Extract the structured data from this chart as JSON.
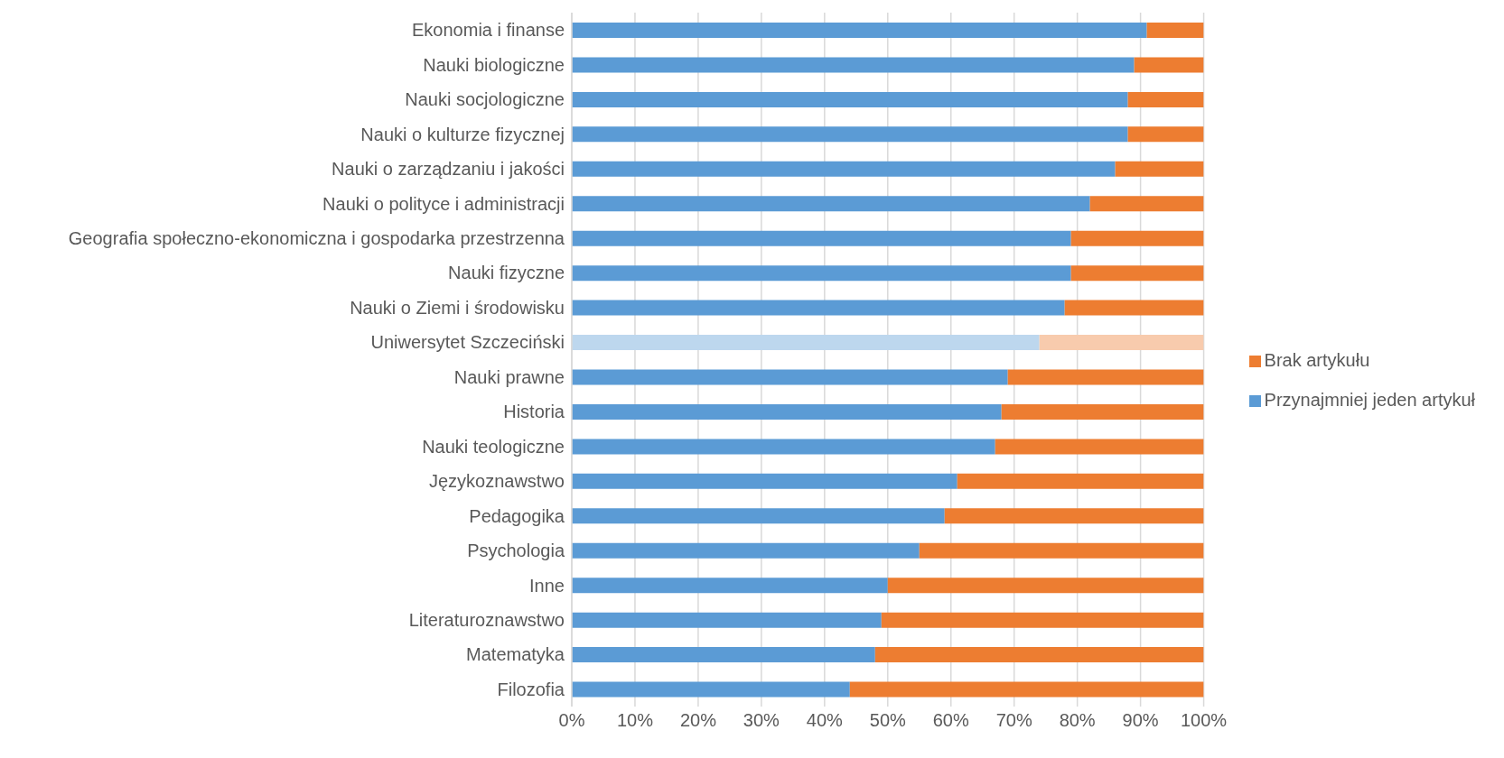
{
  "chart_data": {
    "type": "bar",
    "orientation": "horizontal",
    "stacked": true,
    "categories": [
      "Ekonomia i finanse",
      "Nauki biologiczne",
      "Nauki socjologiczne",
      "Nauki o kulturze fizycznej",
      "Nauki o zarządzaniu i jakości",
      "Nauki o polityce i administracji",
      "Geografia społeczno-ekonomiczna i gospodarka przestrzenna",
      "Nauki fizyczne",
      "Nauki o Ziemi i środowisku",
      "Uniwersytet Szczeciński",
      "Nauki prawne",
      "Historia",
      "Nauki teologiczne",
      "Językoznawstwo",
      "Pedagogika",
      "Psychologia",
      "Inne",
      "Literaturoznawstwo",
      "Matematyka",
      "Filozofia"
    ],
    "series": [
      {
        "name": "Przynajmniej jeden artykuł",
        "color": "#5b9bd5",
        "colors": [
          "#5b9bd5",
          "#5b9bd5",
          "#5b9bd5",
          "#5b9bd5",
          "#5b9bd5",
          "#5b9bd5",
          "#5b9bd5",
          "#5b9bd5",
          "#5b9bd5",
          "#bdd7ee",
          "#5b9bd5",
          "#5b9bd5",
          "#5b9bd5",
          "#5b9bd5",
          "#5b9bd5",
          "#5b9bd5",
          "#5b9bd5",
          "#5b9bd5",
          "#5b9bd5",
          "#5b9bd5"
        ],
        "values": [
          91,
          89,
          88,
          88,
          86,
          82,
          79,
          79,
          78,
          74,
          69,
          68,
          67,
          61,
          59,
          55,
          50,
          49,
          48,
          44
        ]
      },
      {
        "name": "Brak artykułu",
        "color": "#ed7d31",
        "colors": [
          "#ed7d31",
          "#ed7d31",
          "#ed7d31",
          "#ed7d31",
          "#ed7d31",
          "#ed7d31",
          "#ed7d31",
          "#ed7d31",
          "#ed7d31",
          "#f8cbad",
          "#ed7d31",
          "#ed7d31",
          "#ed7d31",
          "#ed7d31",
          "#ed7d31",
          "#ed7d31",
          "#ed7d31",
          "#ed7d31",
          "#ed7d31",
          "#ed7d31"
        ],
        "values": [
          9,
          11,
          12,
          12,
          14,
          18,
          21,
          21,
          22,
          26,
          31,
          32,
          33,
          39,
          41,
          45,
          50,
          51,
          52,
          56
        ]
      }
    ],
    "xlim": [
      0,
      100
    ],
    "xticks": [
      {
        "value": 0,
        "label": "0%"
      },
      {
        "value": 10,
        "label": "10%"
      },
      {
        "value": 20,
        "label": "20%"
      },
      {
        "value": 30,
        "label": "30%"
      },
      {
        "value": 40,
        "label": "40%"
      },
      {
        "value": 50,
        "label": "50%"
      },
      {
        "value": 60,
        "label": "60%"
      },
      {
        "value": 70,
        "label": "70%"
      },
      {
        "value": 80,
        "label": "80%"
      },
      {
        "value": 90,
        "label": "90%"
      },
      {
        "value": 100,
        "label": "100%"
      }
    ],
    "grid": "x",
    "legend": "right"
  }
}
